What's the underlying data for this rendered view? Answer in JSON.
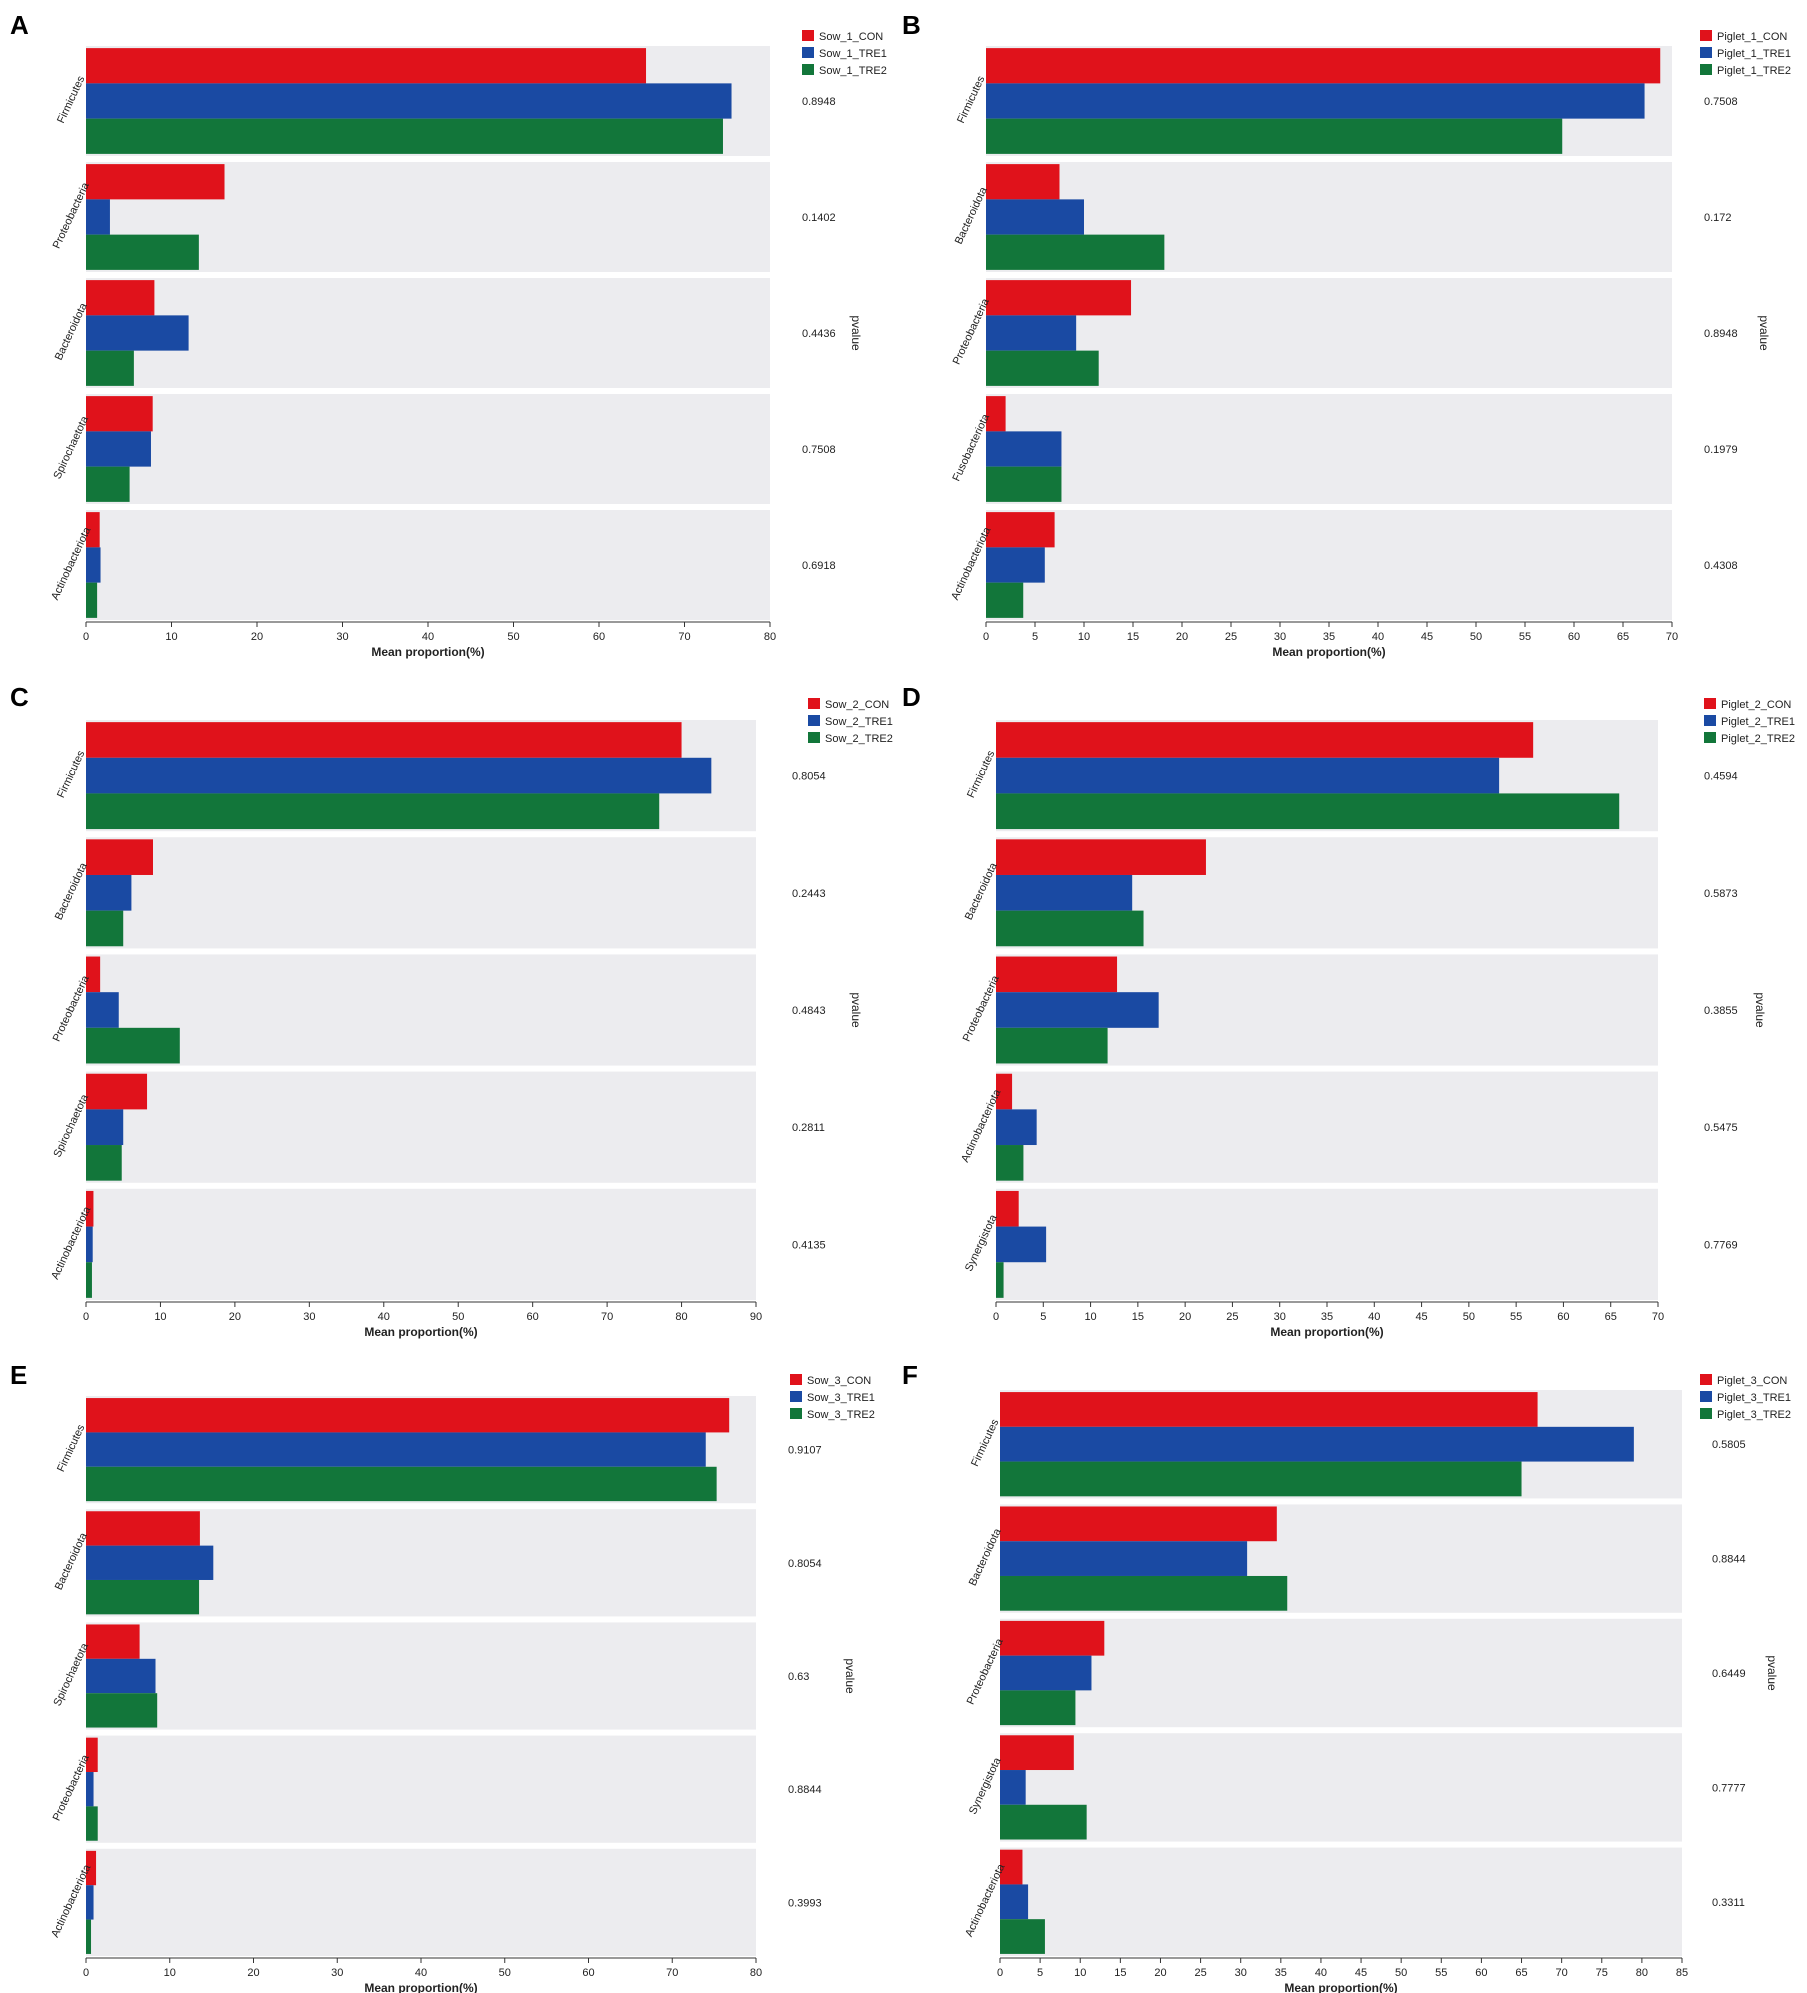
{
  "colors": {
    "CON": "#e0121b",
    "TRE1": "#1a4aa3",
    "TRE2": "#12763a",
    "band": "#ececef",
    "axis": "#333333",
    "text": "#222222"
  },
  "chart_data": [
    {
      "type": "bar",
      "orientation": "horizontal",
      "panel": "A",
      "xlabel": "Mean proportion(%)",
      "pvalue_label": "pvalue",
      "xlim": [
        0,
        80
      ],
      "xticks": [
        0,
        10,
        20,
        30,
        40,
        50,
        60,
        70,
        80
      ],
      "series": [
        {
          "name": "Sow_1_CON",
          "key": "CON",
          "values": [
            65.5,
            16.2,
            8.0,
            7.8,
            1.6
          ]
        },
        {
          "name": "Sow_1_TRE1",
          "key": "TRE1",
          "values": [
            75.5,
            2.8,
            12.0,
            7.6,
            1.7
          ]
        },
        {
          "name": "Sow_1_TRE2",
          "key": "TRE2",
          "values": [
            74.5,
            13.2,
            5.6,
            5.1,
            1.3
          ]
        }
      ],
      "categories": [
        "Firmicutes",
        "Proteobacteria",
        "Bacteroidota",
        "Spirochaetota",
        "Actinobacteriota"
      ],
      "pvalues": [
        "0.8948",
        "0.1402",
        "0.4436",
        "0.7508",
        "0.6918"
      ]
    },
    {
      "type": "bar",
      "orientation": "horizontal",
      "panel": "B",
      "xlabel": "Mean proportion(%)",
      "pvalue_label": "pvalue",
      "xlim": [
        0,
        70
      ],
      "xticks": [
        0,
        5,
        10,
        15,
        20,
        25,
        30,
        35,
        40,
        45,
        50,
        55,
        60,
        65,
        70
      ],
      "series": [
        {
          "name": "Piglet_1_CON",
          "key": "CON",
          "values": [
            68.8,
            7.5,
            14.8,
            2.0,
            7.0
          ]
        },
        {
          "name": "Piglet_1_TRE1",
          "key": "TRE1",
          "values": [
            67.2,
            10.0,
            9.2,
            7.7,
            6.0
          ]
        },
        {
          "name": "Piglet_1_TRE2",
          "key": "TRE2",
          "values": [
            58.8,
            18.2,
            11.5,
            7.7,
            3.8
          ]
        }
      ],
      "categories": [
        "Firmicutes",
        "Bacteroidota",
        "Proteobacteria",
        "Fusobacteriota",
        "Actinobacteriota"
      ],
      "pvalues": [
        "0.7508",
        "0.172",
        "0.8948",
        "0.1979",
        "0.4308"
      ]
    },
    {
      "type": "bar",
      "orientation": "horizontal",
      "panel": "C",
      "xlabel": "Mean proportion(%)",
      "pvalue_label": "pvalue",
      "xlim": [
        0,
        90
      ],
      "xticks": [
        0,
        10,
        20,
        30,
        40,
        50,
        60,
        70,
        80,
        90
      ],
      "series": [
        {
          "name": "Sow_2_CON",
          "key": "CON",
          "values": [
            80.0,
            9.0,
            1.9,
            8.2,
            1.0
          ]
        },
        {
          "name": "Sow_2_TRE1",
          "key": "TRE1",
          "values": [
            84.0,
            6.1,
            4.4,
            5.0,
            0.9
          ]
        },
        {
          "name": "Sow_2_TRE2",
          "key": "TRE2",
          "values": [
            77.0,
            5.0,
            12.6,
            4.8,
            0.8
          ]
        }
      ],
      "categories": [
        "Firmicutes",
        "Bacteroidota",
        "Proteobacteria",
        "Spirochaetota",
        "Actinobacteriota"
      ],
      "pvalues": [
        "0.8054",
        "0.2443",
        "0.4843",
        "0.2811",
        "0.4135"
      ]
    },
    {
      "type": "bar",
      "orientation": "horizontal",
      "panel": "D",
      "xlabel": "Mean proportion(%)",
      "pvalue_label": "pvalue",
      "xlim": [
        0,
        70
      ],
      "xticks": [
        0,
        5,
        10,
        15,
        20,
        25,
        30,
        35,
        40,
        45,
        50,
        55,
        60,
        65,
        70
      ],
      "series": [
        {
          "name": "Piglet_2_CON",
          "key": "CON",
          "values": [
            56.8,
            22.2,
            12.8,
            1.7,
            2.4
          ]
        },
        {
          "name": "Piglet_2_TRE1",
          "key": "TRE1",
          "values": [
            53.2,
            14.4,
            17.2,
            4.3,
            5.3
          ]
        },
        {
          "name": "Piglet_2_TRE2",
          "key": "TRE2",
          "values": [
            65.9,
            15.6,
            11.8,
            2.9,
            0.8
          ]
        }
      ],
      "categories": [
        "Firmicutes",
        "Bacteroidota",
        "Proteobacteria",
        "Actinobacteriota",
        "Synergistota"
      ],
      "pvalues": [
        "0.4594",
        "0.5873",
        "0.3855",
        "0.5475",
        "0.7769"
      ]
    },
    {
      "type": "bar",
      "orientation": "horizontal",
      "panel": "E",
      "xlabel": "Mean proportion(%)",
      "pvalue_label": "pvalue",
      "xlim": [
        0,
        80
      ],
      "xticks": [
        0,
        10,
        20,
        30,
        40,
        50,
        60,
        70,
        80
      ],
      "series": [
        {
          "name": "Sow_3_CON",
          "key": "CON",
          "values": [
            76.8,
            13.6,
            6.4,
            1.4,
            1.2
          ]
        },
        {
          "name": "Sow_3_TRE1",
          "key": "TRE1",
          "values": [
            74.0,
            15.2,
            8.3,
            0.9,
            0.9
          ]
        },
        {
          "name": "Sow_3_TRE2",
          "key": "TRE2",
          "values": [
            75.3,
            13.5,
            8.5,
            1.4,
            0.6
          ]
        }
      ],
      "categories": [
        "Firmicutes",
        "Bacteroidota",
        "Spirochaetota",
        "Proteobacteria",
        "Actinobacteriota"
      ],
      "pvalues": [
        "0.9107",
        "0.8054",
        "0.63",
        "0.8844",
        "0.3993"
      ]
    },
    {
      "type": "bar",
      "orientation": "horizontal",
      "panel": "F",
      "xlabel": "Mean proportion(%)",
      "pvalue_label": "pvalue",
      "xlim": [
        0,
        85
      ],
      "xticks": [
        0,
        5,
        10,
        15,
        20,
        25,
        30,
        35,
        40,
        45,
        50,
        55,
        60,
        65,
        70,
        75,
        80,
        85
      ],
      "series": [
        {
          "name": "Piglet_3_CON",
          "key": "CON",
          "values": [
            67.0,
            34.5,
            13.0,
            9.2,
            2.8
          ]
        },
        {
          "name": "Piglet_3_TRE1",
          "key": "TRE1",
          "values": [
            79.0,
            30.8,
            11.4,
            3.2,
            3.5
          ]
        },
        {
          "name": "Piglet_3_TRE2",
          "key": "TRE2",
          "values": [
            65.0,
            35.8,
            9.4,
            10.8,
            5.6
          ]
        }
      ],
      "categories": [
        "Firmicutes",
        "Bacteroidota",
        "Proteobacteria",
        "Synergistota",
        "Actinobacteriota"
      ],
      "pvalues": [
        "0.5805",
        "0.8844",
        "0.6449",
        "0.7777",
        "0.3311"
      ]
    }
  ]
}
